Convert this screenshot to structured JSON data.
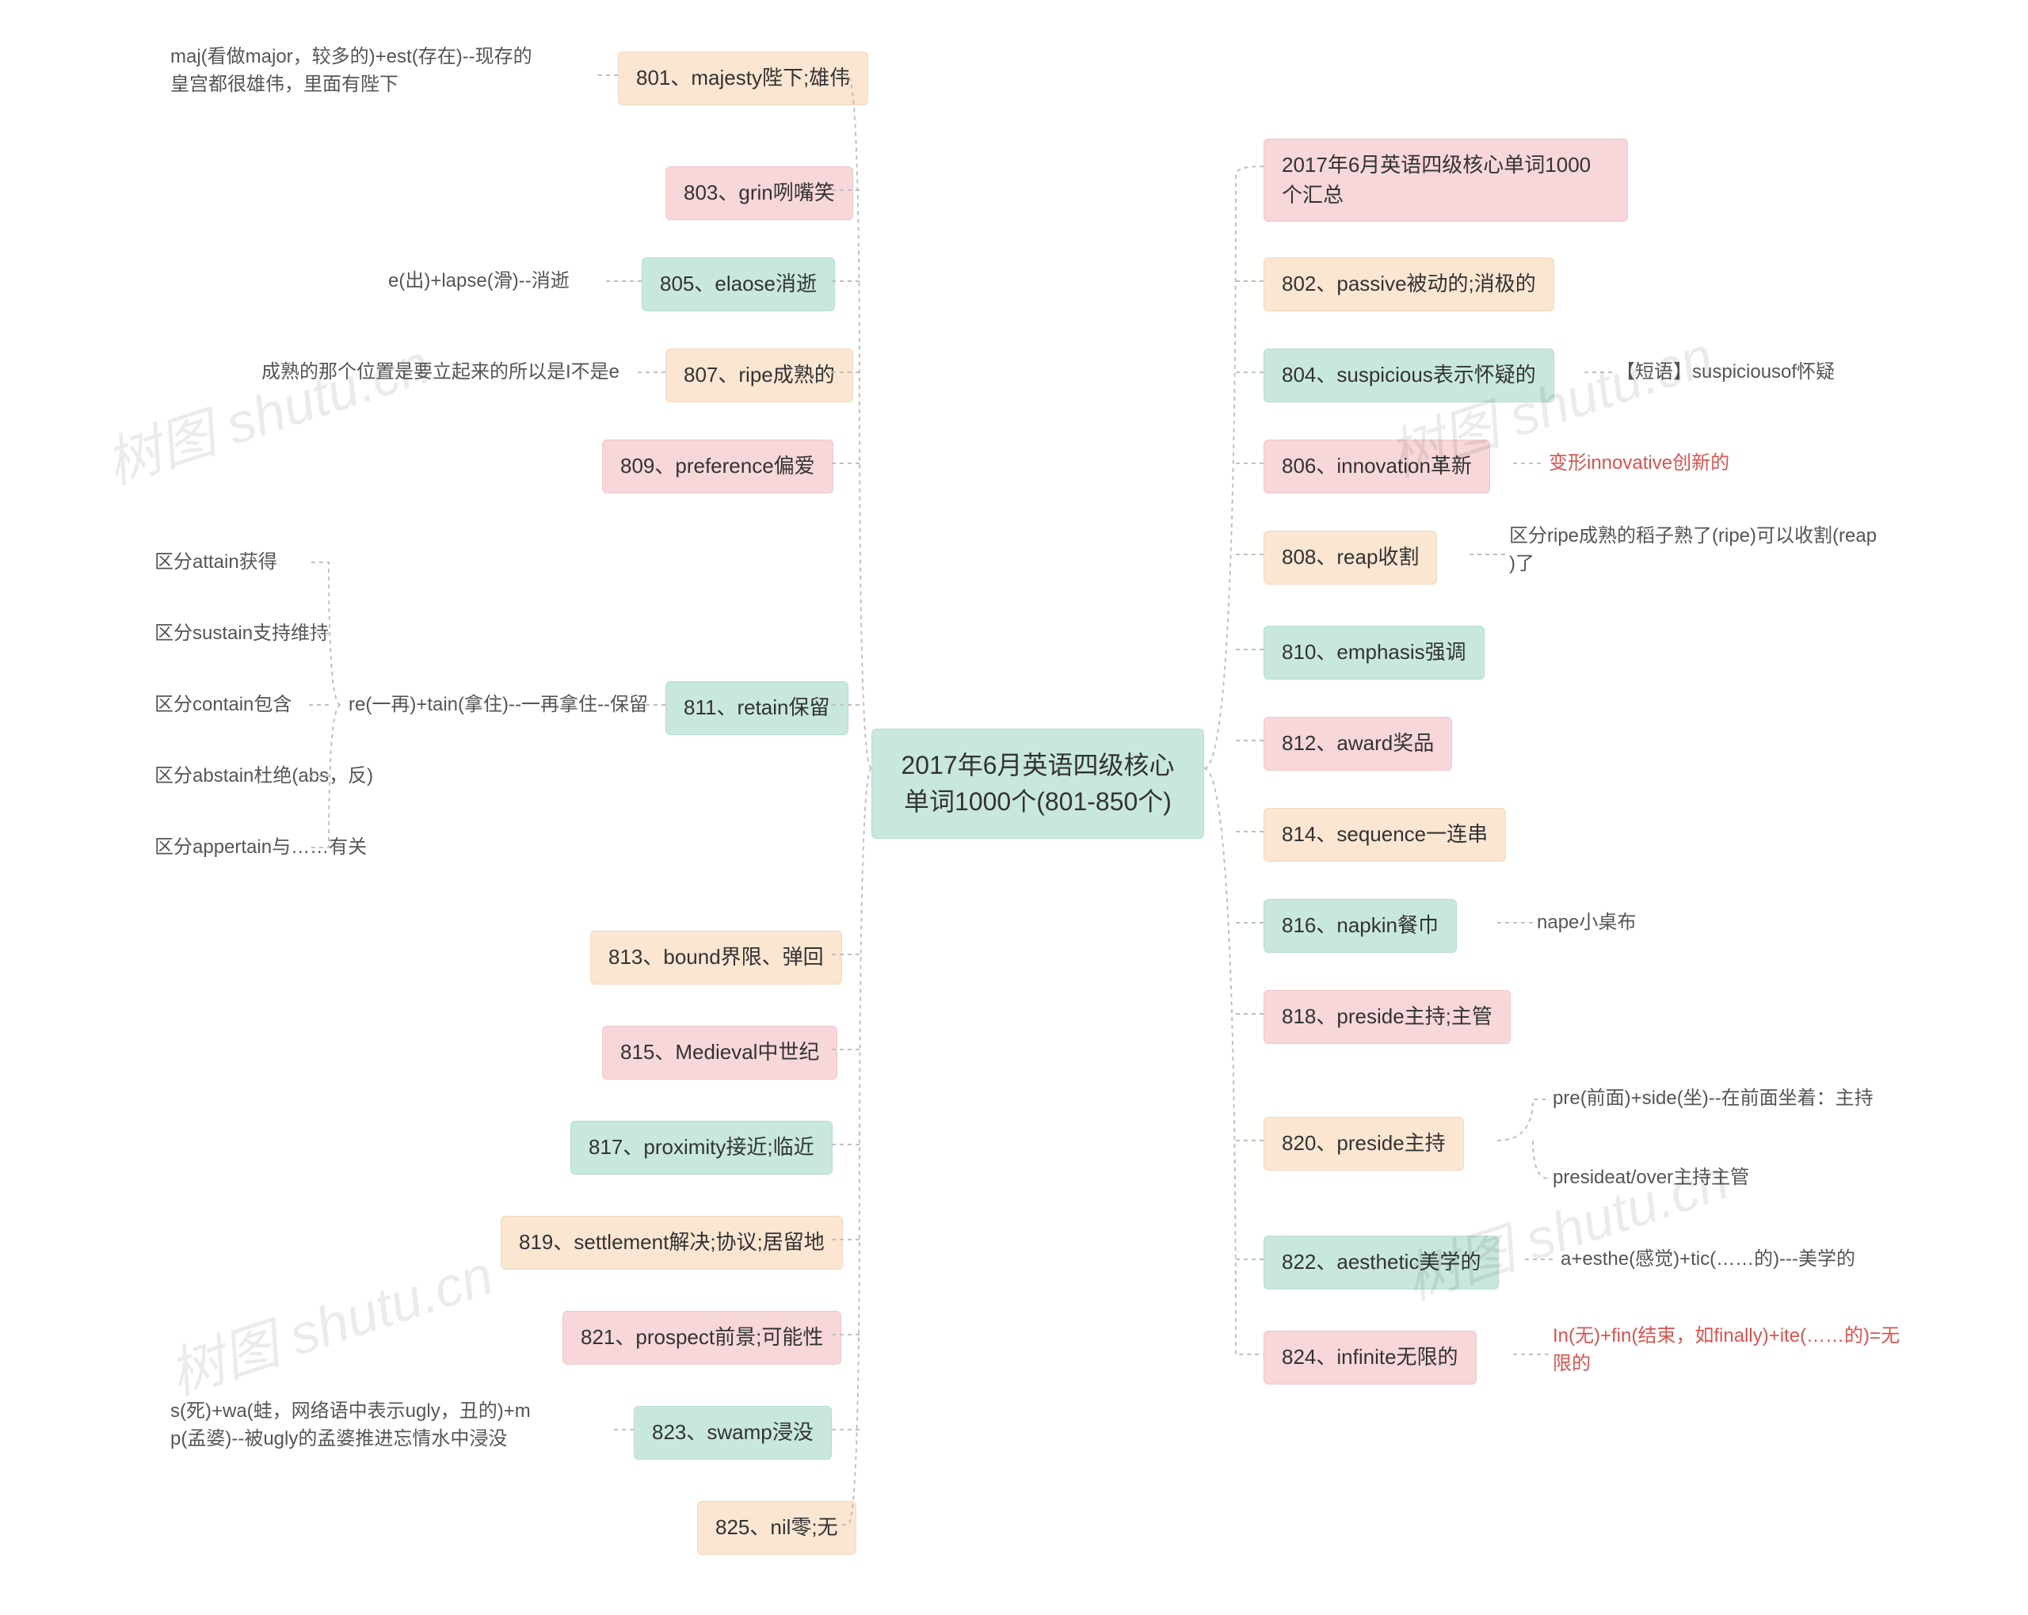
{
  "center": {
    "line1": "2017年6月英语四级核心",
    "line2": "单词1000个(801-850个)"
  },
  "left": {
    "n801": "801、majesty陛下;雄伟",
    "n801_note": "maj(看做major，较多的)+est(存在)--现存的\n皇宫都很雄伟，里面有陛下",
    "n803": "803、grin咧嘴笑",
    "n805": "805、elaose消逝",
    "n805_note": "e(出)+lapse(滑)--消逝",
    "n807": "807、ripe成熟的",
    "n807_note": "成熟的那个位置是要立起来的所以是I不是e",
    "n809": "809、preference偏爱",
    "n811": "811、retain保留",
    "n811_note_main": "re(一再)+tain(拿住)--一再拿住--保留",
    "n811_sub1": "区分attain获得",
    "n811_sub2": "区分sustain支持维持",
    "n811_sub3": "区分contain包含",
    "n811_sub4": "区分abstain杜绝(abs，反)",
    "n811_sub5": "区分appertain与……有关",
    "n813": "813、bound界限、弹回",
    "n815": "815、Medieval中世纪",
    "n817": "817、proximity接近;临近",
    "n819": "819、settlement解决;协议;居留地",
    "n821": "821、prospect前景;可能性",
    "n823": "823、swamp浸没",
    "n823_note": "s(死)+wa(蛙，网络语中表示ugly，丑的)+m\np(孟婆)--被ugly的孟婆推进忘情水中浸没",
    "n825": "825、nil零;无"
  },
  "right": {
    "summary": "2017年6月英语四级核心单词1000\n个汇总",
    "n802": "802、passive被动的;消极的",
    "n804": "804、suspicious表示怀疑的",
    "n804_note": "【短语】suspiciousof怀疑",
    "n806": "806、innovation革新",
    "n806_note": "变形innovative创新的",
    "n808": "808、reap收割",
    "n808_note": "区分ripe成熟的稻子熟了(ripe)可以收割(reap\n)了",
    "n810": "810、emphasis强调",
    "n812": "812、award奖品",
    "n814": "814、sequence一连串",
    "n816": "816、napkin餐巾",
    "n816_note": "nape小桌布",
    "n818": "818、preside主持;主管",
    "n820": "820、preside主持",
    "n820_note1": "pre(前面)+side(坐)--在前面坐着：主持",
    "n820_note2": "presideat/over主持主管",
    "n822": "822、aesthetic美学的",
    "n822_note": "a+esthe(感觉)+tic(……的)---美学的",
    "n824": "824、infinite无限的",
    "n824_note": "In(无)+fin(结束，如finally)+ite(……的)=无\n限的"
  },
  "colors": {
    "pink": "#f7d7da",
    "green": "#c9e8dd",
    "peach": "#fbe6d2",
    "note": "#555555",
    "note_red": "#d9534f",
    "connector": "#c0c0c0",
    "background": "#ffffff"
  },
  "watermark": "树图 shutu.cn"
}
